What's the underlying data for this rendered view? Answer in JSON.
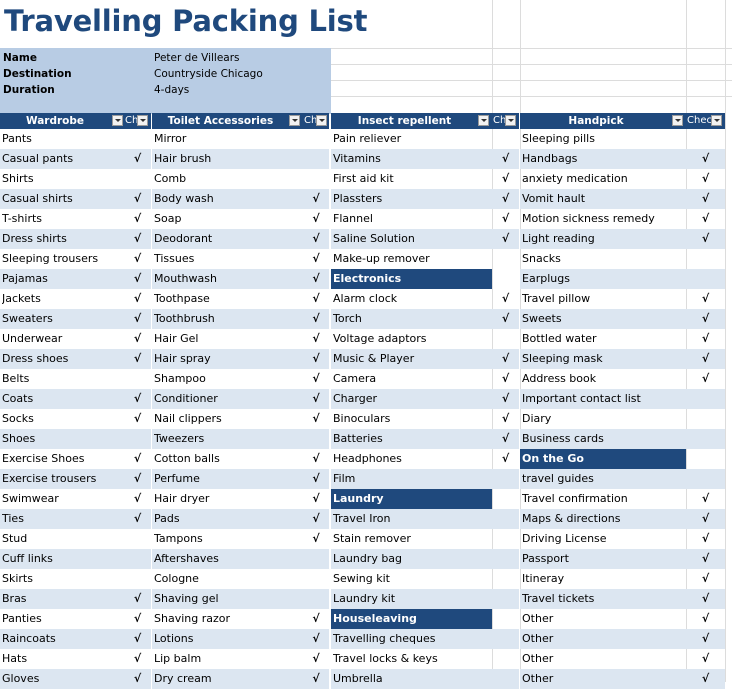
{
  "title": "Travelling Packing List",
  "info": [
    {
      "label": "Name",
      "value": "Peter de Villears"
    },
    {
      "label": "Destination",
      "value": "Countryside Chicago"
    },
    {
      "label": "Duration",
      "value": "4-days"
    }
  ],
  "columns": [
    {
      "header": "Wardrobe",
      "check_header": "Ch",
      "rows": [
        {
          "item": "Pants",
          "check": ""
        },
        {
          "item": "Casual pants",
          "check": "√"
        },
        {
          "item": "Shirts",
          "check": ""
        },
        {
          "item": "Casual shirts",
          "check": "√"
        },
        {
          "item": "T-shirts",
          "check": "√"
        },
        {
          "item": "Dress shirts",
          "check": "√"
        },
        {
          "item": "Sleeping trousers",
          "check": "√"
        },
        {
          "item": "Pajamas",
          "check": "√"
        },
        {
          "item": "Jackets",
          "check": "√"
        },
        {
          "item": "Sweaters",
          "check": "√"
        },
        {
          "item": "Underwear",
          "check": "√"
        },
        {
          "item": "Dress shoes",
          "check": "√"
        },
        {
          "item": "Belts",
          "check": ""
        },
        {
          "item": "Coats",
          "check": "√"
        },
        {
          "item": "Socks",
          "check": "√"
        },
        {
          "item": "Shoes",
          "check": ""
        },
        {
          "item": "Exercise Shoes",
          "check": "√"
        },
        {
          "item": "Exercise trousers",
          "check": "√"
        },
        {
          "item": "Swimwear",
          "check": "√"
        },
        {
          "item": "Ties",
          "check": "√"
        },
        {
          "item": "Stud",
          "check": ""
        },
        {
          "item": "Cuff links",
          "check": ""
        },
        {
          "item": "Skirts",
          "check": ""
        },
        {
          "item": "Bras",
          "check": "√"
        },
        {
          "item": "Panties",
          "check": "√"
        },
        {
          "item": "Raincoats",
          "check": "√"
        },
        {
          "item": "Hats",
          "check": "√"
        },
        {
          "item": "Gloves",
          "check": "√"
        }
      ]
    },
    {
      "header": "Toilet Accessories",
      "check_header": "Che",
      "rows": [
        {
          "item": "Mirror",
          "check": ""
        },
        {
          "item": "Hair brush",
          "check": ""
        },
        {
          "item": "Comb",
          "check": ""
        },
        {
          "item": "Body wash",
          "check": "√"
        },
        {
          "item": "Soap",
          "check": "√"
        },
        {
          "item": "Deodorant",
          "check": "√"
        },
        {
          "item": "Tissues",
          "check": "√"
        },
        {
          "item": "Mouthwash",
          "check": "√"
        },
        {
          "item": "Toothpase",
          "check": "√"
        },
        {
          "item": "Toothbrush",
          "check": "√"
        },
        {
          "item": "Hair Gel",
          "check": "√"
        },
        {
          "item": "Hair spray",
          "check": "√"
        },
        {
          "item": "Shampoo",
          "check": "√"
        },
        {
          "item": "Conditioner",
          "check": "√"
        },
        {
          "item": "Nail clippers",
          "check": "√"
        },
        {
          "item": "Tweezers",
          "check": ""
        },
        {
          "item": "Cotton balls",
          "check": "√"
        },
        {
          "item": "Perfume",
          "check": "√"
        },
        {
          "item": "Hair dryer",
          "check": "√"
        },
        {
          "item": "Pads",
          "check": "√"
        },
        {
          "item": "Tampons",
          "check": "√"
        },
        {
          "item": "Aftershaves",
          "check": ""
        },
        {
          "item": "Cologne",
          "check": ""
        },
        {
          "item": "Shaving gel",
          "check": ""
        },
        {
          "item": "Shaving razor",
          "check": "√"
        },
        {
          "item": "Lotions",
          "check": "√"
        },
        {
          "item": "Lip balm",
          "check": "√"
        },
        {
          "item": "Dry cream",
          "check": "√"
        }
      ]
    },
    {
      "header": "Insect repellent",
      "check_header": "Ch",
      "rows": [
        {
          "item": "Pain reliever",
          "check": ""
        },
        {
          "item": "Vitamins",
          "check": "√"
        },
        {
          "item": "First aid kit",
          "check": "√"
        },
        {
          "item": "Plassters",
          "check": "√"
        },
        {
          "item": "Flannel",
          "check": "√"
        },
        {
          "item": "Saline Solution",
          "check": "√"
        },
        {
          "item": "Make-up remover",
          "check": ""
        },
        {
          "item": "Electronics",
          "check": "",
          "section": true
        },
        {
          "item": "Alarm clock",
          "check": "√"
        },
        {
          "item": "Torch",
          "check": "√"
        },
        {
          "item": "Voltage adaptors",
          "check": ""
        },
        {
          "item": "Music & Player",
          "check": "√"
        },
        {
          "item": "Camera",
          "check": "√"
        },
        {
          "item": "Charger",
          "check": "√"
        },
        {
          "item": "Binoculars",
          "check": "√"
        },
        {
          "item": "Batteries",
          "check": "√"
        },
        {
          "item": "Headphones",
          "check": "√"
        },
        {
          "item": "Film",
          "check": ""
        },
        {
          "item": "Laundry",
          "check": "",
          "section": true
        },
        {
          "item": "Travel Iron",
          "check": ""
        },
        {
          "item": "Stain remover",
          "check": ""
        },
        {
          "item": "Laundry bag",
          "check": ""
        },
        {
          "item": "Sewing kit",
          "check": ""
        },
        {
          "item": "Laundry kit",
          "check": ""
        },
        {
          "item": "Houseleaving",
          "check": "",
          "section": true
        },
        {
          "item": "Travelling cheques",
          "check": ""
        },
        {
          "item": "Travel locks & keys",
          "check": ""
        },
        {
          "item": "Umbrella",
          "check": ""
        }
      ]
    },
    {
      "header": "Handpick",
      "check_header": "Chec",
      "rows": [
        {
          "item": "Sleeping pills",
          "check": ""
        },
        {
          "item": "Handbags",
          "check": "√"
        },
        {
          "item": "anxiety medication",
          "check": "√"
        },
        {
          "item": "Vomit hault",
          "check": "√"
        },
        {
          "item": "Motion sickness remedy",
          "check": "√"
        },
        {
          "item": "Light reading",
          "check": "√"
        },
        {
          "item": "Snacks",
          "check": ""
        },
        {
          "item": "Earplugs",
          "check": ""
        },
        {
          "item": "Travel pillow",
          "check": "√"
        },
        {
          "item": "Sweets",
          "check": "√"
        },
        {
          "item": "Bottled water",
          "check": "√"
        },
        {
          "item": "Sleeping mask",
          "check": "√"
        },
        {
          "item": "Address book",
          "check": "√"
        },
        {
          "item": "Important contact list",
          "check": ""
        },
        {
          "item": "Diary",
          "check": ""
        },
        {
          "item": "Business cards",
          "check": ""
        },
        {
          "item": "On the Go",
          "check": "",
          "section": true
        },
        {
          "item": "travel guides",
          "check": ""
        },
        {
          "item": "Travel confirmation",
          "check": "√"
        },
        {
          "item": "Maps & directions",
          "check": "√"
        },
        {
          "item": "Driving License",
          "check": "√"
        },
        {
          "item": "Passport",
          "check": "√"
        },
        {
          "item": "Itineray",
          "check": "√"
        },
        {
          "item": "Travel tickets",
          "check": "√"
        },
        {
          "item": "Other",
          "check": "√"
        },
        {
          "item": "Other",
          "check": "√"
        },
        {
          "item": "Other",
          "check": "√"
        },
        {
          "item": "Other",
          "check": "√"
        }
      ]
    }
  ]
}
